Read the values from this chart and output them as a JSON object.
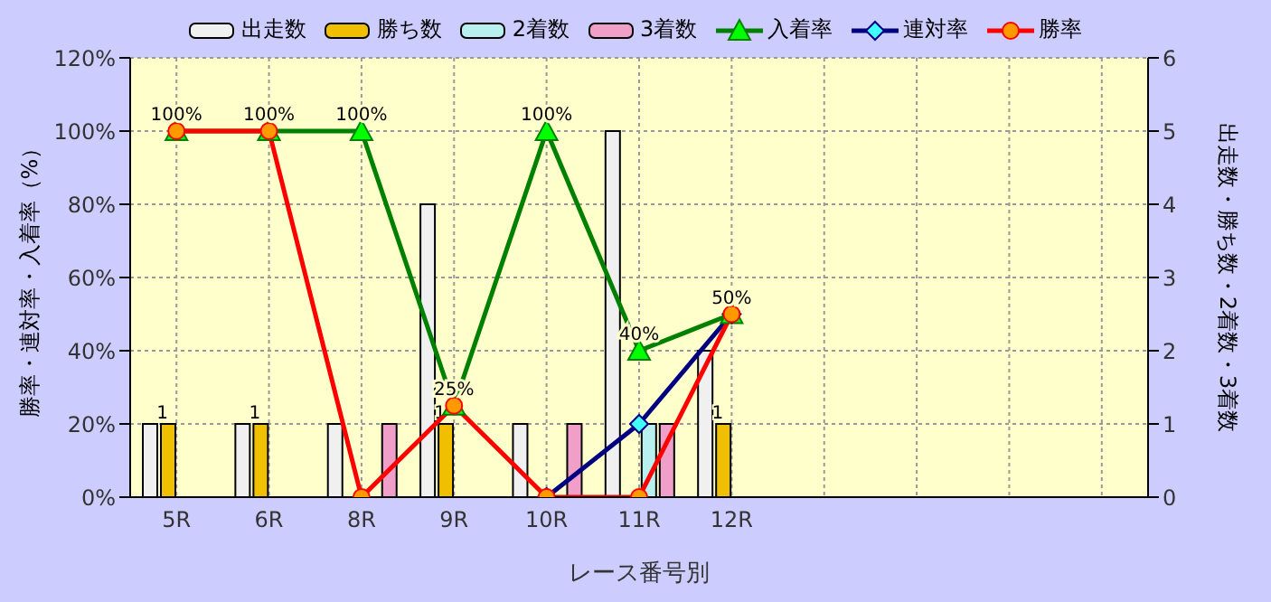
{
  "chart_data": {
    "type": "bar",
    "xlabel": "レース番号別",
    "ylabel": "勝率・連対率・入着率（%）",
    "y2label": "出走数・勝ち数・2着数・3着数",
    "categories": [
      "5R",
      "6R",
      "8R",
      "9R",
      "10R",
      "11R",
      "12R",
      null,
      null,
      null,
      null
    ],
    "series": [
      {
        "name": "出走数",
        "axis": "y2",
        "color": "#f0f0f0",
        "values": [
          1,
          1,
          1,
          4,
          1,
          5,
          2,
          null,
          null,
          null,
          null
        ]
      },
      {
        "name": "勝ち数",
        "axis": "y2",
        "color": "#f0c000",
        "values": [
          1,
          1,
          0,
          1,
          0,
          0,
          1,
          null,
          null,
          null,
          null
        ],
        "value_labels": [
          "1",
          "1",
          null,
          "1",
          null,
          null,
          "1",
          null,
          null,
          null,
          null
        ]
      },
      {
        "name": "2着数",
        "axis": "y2",
        "color": "#b8f0f0",
        "values": [
          0,
          0,
          0,
          0,
          0,
          1,
          0,
          null,
          null,
          null,
          null
        ]
      },
      {
        "name": "3着数",
        "axis": "y2",
        "color": "#f0a0c8",
        "values": [
          0,
          0,
          1,
          0,
          1,
          1,
          0,
          null,
          null,
          null,
          null
        ]
      },
      {
        "name": "入着率",
        "type": "line",
        "marker": "triangle",
        "color": "#008000",
        "values": [
          100,
          100,
          100,
          25,
          100,
          40,
          50,
          null,
          null,
          null,
          null
        ],
        "value_labels": [
          "100%",
          "100%",
          "100%",
          "25%",
          "100%",
          "40%",
          "50%",
          null,
          null,
          null,
          null
        ]
      },
      {
        "name": "連対率",
        "type": "line",
        "marker": "diamond",
        "color": "#000080",
        "values": [
          null,
          null,
          null,
          null,
          0,
          20,
          50,
          null,
          null,
          null,
          null
        ]
      },
      {
        "name": "勝率",
        "type": "line",
        "marker": "circle",
        "color": "#ff0000",
        "values": [
          100,
          100,
          0,
          25,
          0,
          0,
          50,
          null,
          null,
          null,
          null
        ]
      }
    ],
    "ylim": [
      0,
      120
    ],
    "yticks": [
      {
        "value": 0,
        "label": "0%"
      },
      {
        "value": 20,
        "label": "20%"
      },
      {
        "value": 40,
        "label": "40%"
      },
      {
        "value": 60,
        "label": "60%"
      },
      {
        "value": 80,
        "label": "80%"
      },
      {
        "value": 100,
        "label": "100%"
      },
      {
        "value": 120,
        "label": "120%"
      }
    ],
    "y2lim": [
      0,
      6
    ],
    "y2ticks": [
      0,
      1,
      2,
      3,
      4,
      5,
      6
    ],
    "grid": true,
    "legend": "top"
  }
}
